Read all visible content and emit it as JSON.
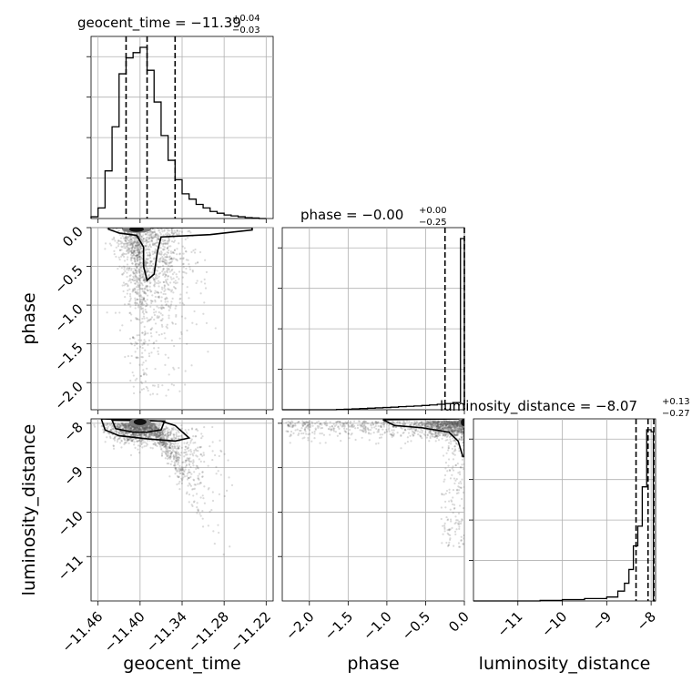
{
  "chart_data": {
    "type": "corner",
    "parameters": [
      "geocent_time",
      "phase",
      "luminosity_distance"
    ],
    "titles": [
      {
        "param": "geocent_time",
        "text": "geocent_time = −11.39",
        "plus": "+0.04",
        "minus": "−0.03"
      },
      {
        "param": "phase",
        "text": "phase = −0.00",
        "plus": "+0.00",
        "minus": "−0.25"
      },
      {
        "param": "luminosity_distance",
        "text": "luminosity_distance = −8.07",
        "plus": "+0.13",
        "minus": "−0.27"
      }
    ],
    "x_tick_labels": {
      "geocent_time": [
        "−11.46",
        "−11.40",
        "−11.34",
        "−11.28",
        "−11.22"
      ],
      "phase": [
        "−2.0",
        "−1.5",
        "−1.0",
        "−0.5",
        "0.0"
      ],
      "luminosity_distance": [
        "−11",
        "−10",
        "−9",
        "−8"
      ]
    },
    "y_tick_labels": {
      "phase": [
        "0.0",
        "−0.5",
        "−1.0",
        "−1.5",
        "−2.0"
      ],
      "luminosity_distance": [
        "−8",
        "−9",
        "−10",
        "−11"
      ]
    },
    "ranges": {
      "geocent_time": [
        -11.47,
        -11.21
      ],
      "phase": [
        -2.35,
        0.0
      ],
      "luminosity_distance": [
        -12.0,
        -7.9
      ]
    },
    "quantiles": {
      "geocent_time": [
        -11.42,
        -11.39,
        -11.35
      ],
      "phase": [
        -0.25,
        0.0
      ],
      "luminosity_distance": [
        -8.34,
        -8.07,
        -7.94
      ]
    },
    "histograms": {
      "geocent_time": {
        "edges": [
          -11.47,
          -11.46,
          -11.45,
          -11.44,
          -11.43,
          -11.42,
          -11.41,
          -11.4,
          -11.39,
          -11.38,
          -11.37,
          -11.36,
          -11.35,
          -11.34,
          -11.33,
          -11.32,
          -11.31,
          -11.3,
          -11.29,
          -11.28,
          -11.27,
          -11.26,
          -11.25,
          -11.24,
          -11.23,
          -11.22
        ],
        "counts": [
          1,
          6,
          27,
          52,
          82,
          91,
          94,
          97,
          84,
          66,
          47,
          33,
          22,
          14,
          11,
          8,
          6,
          4,
          3,
          2,
          1.5,
          1,
          0.5,
          0.3,
          0
        ]
      },
      "phase": {
        "edges": [
          -2.35,
          -2.25,
          -2.15,
          -2.05,
          -1.95,
          -1.85,
          -1.75,
          -1.65,
          -1.55,
          -1.45,
          -1.35,
          -1.25,
          -1.15,
          -1.05,
          -0.95,
          -0.85,
          -0.75,
          -0.65,
          -0.55,
          -0.45,
          -0.35,
          -0.25,
          -0.15,
          -0.05,
          0.0
        ],
        "counts": [
          0,
          0,
          0,
          0,
          0,
          0,
          0,
          0.2,
          0.3,
          0.5,
          0.7,
          0.9,
          1.1,
          1.3,
          1.5,
          1.8,
          2,
          2.2,
          2.5,
          2.8,
          3.2,
          3.6,
          4.2,
          100
        ]
      },
      "luminosity_distance": {
        "edges": [
          -12.0,
          -11.0,
          -10.5,
          -10.0,
          -9.5,
          -9.0,
          -8.75,
          -8.6,
          -8.5,
          -8.4,
          -8.3,
          -8.2,
          -8.1,
          -8.0,
          -7.95,
          -7.9
        ],
        "counts": [
          0,
          0,
          0.3,
          0.7,
          1.2,
          2,
          5,
          9,
          16,
          28,
          38,
          58,
          87,
          86,
          0
        ]
      }
    },
    "grid": true
  }
}
